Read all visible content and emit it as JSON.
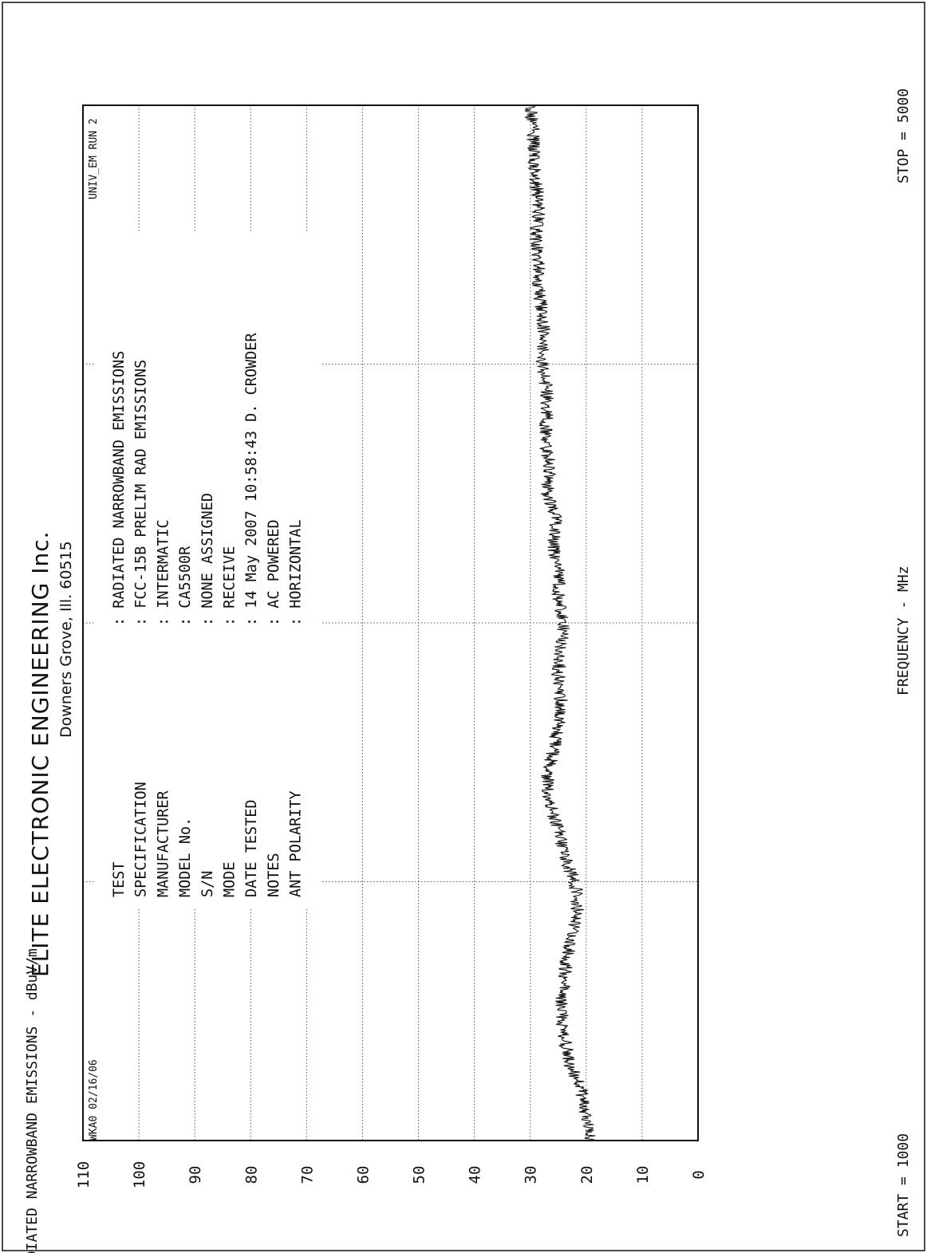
{
  "header": {
    "company": "ELITE ELECTRONIC ENGINEERING Inc.",
    "address": "Downers Grove, Ill. 60515",
    "job": "WKA0  02/16/06",
    "run": "UNIV_EM   RUN 2"
  },
  "info": {
    "keys": [
      "TEST",
      "SPECIFICATION",
      "MANUFACTURER",
      "MODEL No.",
      "S/N",
      "MODE",
      "DATE TESTED",
      "NOTES",
      "ANT POLARITY"
    ],
    "values": [
      "RADIATED NARROWBAND EMISSIONS",
      "FCC-15B PRELIM RAD EMISSIONS",
      "INTERMATIC",
      "CA5500R",
      "NONE ASSIGNED",
      "RECEIVE",
      "14 May 2007   10:58:43  D. CROWDER",
      "AC POWERED",
      "HORIZONTAL"
    ]
  },
  "axes": {
    "start_label": "START = 1000",
    "stop_label": "STOP = 5000",
    "x_title": "FREQUENCY - MHz",
    "y_title": "RADIATED NARROWBAND EMISSIONS - dBuV/m"
  },
  "chart_data": {
    "type": "line",
    "title": "",
    "xlabel": "FREQUENCY - MHz",
    "ylabel": "RADIATED NARROWBAND EMISSIONS - dBuV/m",
    "xlim": [
      1000,
      5000
    ],
    "ylim": [
      0,
      110
    ],
    "y_ticks": [
      0,
      10,
      20,
      30,
      40,
      50,
      60,
      70,
      80,
      90,
      100,
      110
    ],
    "x_tick_labels": [
      "1000",
      "5000"
    ],
    "grid": true,
    "series": [
      {
        "x": [
          1000,
          1100,
          1200,
          1300,
          1400,
          1500,
          1600,
          1700,
          1800,
          1900,
          2000,
          2100,
          2200,
          2300,
          2400,
          2500,
          2600,
          2700,
          2800,
          2900,
          3000,
          3100,
          3200,
          3300,
          3400,
          3500,
          3600,
          3700,
          3800,
          3900,
          4000,
          4100,
          4200,
          4300,
          4400,
          4500,
          4600,
          4700,
          4800,
          4900,
          5000
        ],
        "values": [
          19,
          20,
          21,
          23,
          24,
          24.5,
          24,
          23.5,
          22.5,
          21.5,
          22,
          24,
          25,
          26.5,
          27,
          26,
          25,
          24.5,
          25,
          24.5,
          24,
          25,
          25,
          26,
          25.5,
          27,
          26.5,
          27.5,
          27,
          27,
          28,
          27.5,
          28,
          28.5,
          28.5,
          29,
          28.5,
          29,
          29.5,
          29.5,
          30
        ]
      }
    ]
  }
}
